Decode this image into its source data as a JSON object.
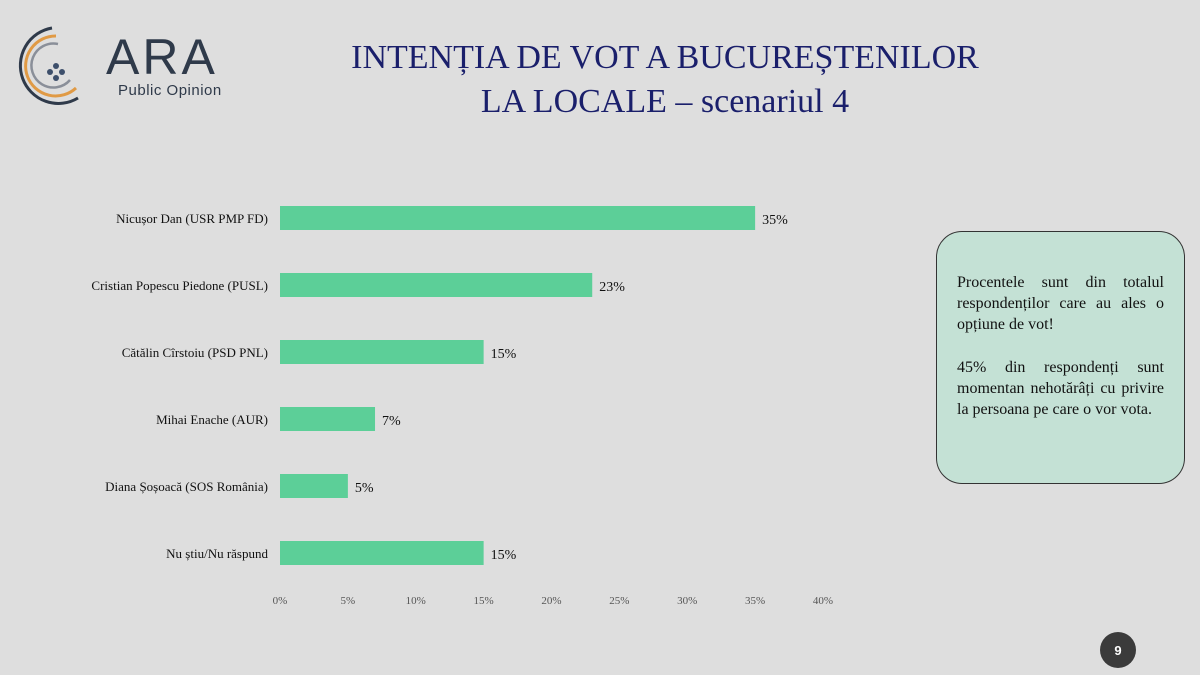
{
  "logo": {
    "name": "ARA",
    "subtitle": "Public Opinion"
  },
  "title": {
    "line1": "INTENȚIA DE VOT A BUCUREȘTENILOR",
    "line2": "LA LOCALE – scenariul 4"
  },
  "note": {
    "paragraph1": "Procentele sunt din totalul respondenților care au ales o opțiune de vot!",
    "paragraph2": "45% din respondenți sunt momentan nehotărâți cu privire la persoana pe care o vor vota."
  },
  "page_number": "9",
  "colors": {
    "bar": "#5ccf98",
    "title": "#1a1f6b",
    "note_bg": "#c4e1d5",
    "background": "#dedede"
  },
  "chart_data": {
    "type": "bar",
    "orientation": "horizontal",
    "categories": [
      "Nicușor Dan (USR PMP FD)",
      "Cristian Popescu Piedone (PUSL)",
      "Cătălin Cîrstoiu (PSD PNL)",
      "Mihai Enache (AUR)",
      "Diana Șoșoacă (SOS România)",
      "Nu știu/Nu răspund"
    ],
    "values": [
      35,
      23,
      15,
      7,
      5,
      15
    ],
    "value_labels": [
      "35%",
      "23%",
      "15%",
      "7%",
      "5%",
      "15%"
    ],
    "xlim": [
      0,
      40
    ],
    "x_ticks": [
      "0%",
      "5%",
      "10%",
      "15%",
      "20%",
      "25%",
      "30%",
      "35%",
      "40%"
    ],
    "grid": false
  }
}
